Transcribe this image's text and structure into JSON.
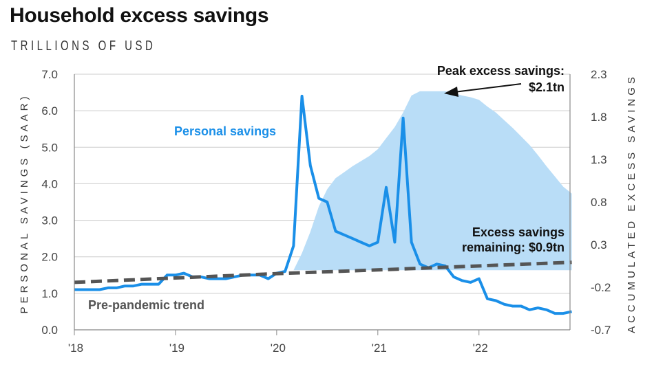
{
  "header": {
    "title": "Household excess savings",
    "subtitle": "TRILLIONS OF USD"
  },
  "colors": {
    "personal_savings_line": "#1a8fe8",
    "excess_area": "#b9ddf7",
    "trend_line": "#555555",
    "gridline": "#cccccc"
  },
  "chart_data": {
    "type": "line",
    "title": "Household excess savings",
    "subtitle": "TRILLIONS OF USD",
    "ylabel_left": "PERSONAL SAVINGS (SAAR)",
    "ylabel_right": "ACCUMULATED EXCESS SAVINGS",
    "x_ticks": [
      "'18",
      "'19",
      "'20",
      "'21",
      "'22"
    ],
    "x_range": [
      2018.0,
      2022.9
    ],
    "y_left_ticks": [
      "0.0",
      "1.0",
      "2.0",
      "3.0",
      "4.0",
      "5.0",
      "6.0",
      "7.0"
    ],
    "y_left_range": [
      0,
      7
    ],
    "y_right_ticks": [
      "-0.7",
      "-0.2",
      "0.3",
      "0.8",
      "1.3",
      "1.8",
      "2.3"
    ],
    "y_right_range": [
      -0.7,
      2.3
    ],
    "grid": true,
    "series": [
      {
        "name": "Personal savings",
        "axis": "left",
        "style": "solid",
        "x": [
          2018.0,
          2018.083,
          2018.167,
          2018.25,
          2018.333,
          2018.417,
          2018.5,
          2018.583,
          2018.667,
          2018.75,
          2018.833,
          2018.917,
          2019.0,
          2019.083,
          2019.167,
          2019.25,
          2019.333,
          2019.417,
          2019.5,
          2019.583,
          2019.667,
          2019.75,
          2019.833,
          2019.917,
          2020.0,
          2020.083,
          2020.167,
          2020.25,
          2020.333,
          2020.417,
          2020.5,
          2020.583,
          2020.667,
          2020.75,
          2020.833,
          2020.917,
          2021.0,
          2021.083,
          2021.167,
          2021.25,
          2021.333,
          2021.417,
          2021.5,
          2021.583,
          2021.667,
          2021.75,
          2021.833,
          2021.917,
          2022.0,
          2022.083,
          2022.167,
          2022.25,
          2022.333,
          2022.417,
          2022.5,
          2022.583,
          2022.667,
          2022.75,
          2022.833,
          2022.917
        ],
        "values": [
          1.1,
          1.1,
          1.1,
          1.1,
          1.15,
          1.15,
          1.2,
          1.2,
          1.25,
          1.25,
          1.25,
          1.5,
          1.5,
          1.55,
          1.45,
          1.45,
          1.4,
          1.4,
          1.4,
          1.45,
          1.5,
          1.5,
          1.5,
          1.4,
          1.55,
          1.6,
          2.3,
          6.4,
          4.5,
          3.6,
          3.5,
          2.7,
          2.6,
          2.5,
          2.4,
          2.3,
          2.4,
          3.9,
          2.4,
          5.8,
          2.4,
          1.8,
          1.7,
          1.8,
          1.75,
          1.45,
          1.35,
          1.3,
          1.4,
          0.85,
          0.8,
          0.7,
          0.65,
          0.65,
          0.55,
          0.6,
          0.55,
          0.45,
          0.45,
          0.5
        ]
      },
      {
        "name": "Pre-pandemic trend",
        "axis": "left",
        "style": "dashed",
        "x": [
          2018.0,
          2019.0,
          2020.0,
          2021.0,
          2022.0,
          2022.917
        ],
        "values": [
          1.3,
          1.42,
          1.54,
          1.64,
          1.75,
          1.85
        ]
      },
      {
        "name": "Accumulated excess savings",
        "axis": "right",
        "style": "area",
        "x": [
          2020.167,
          2020.25,
          2020.333,
          2020.417,
          2020.5,
          2020.583,
          2020.667,
          2020.75,
          2020.833,
          2020.917,
          2021.0,
          2021.083,
          2021.167,
          2021.25,
          2021.333,
          2021.417,
          2021.5,
          2021.583,
          2021.667,
          2021.75,
          2021.833,
          2021.917,
          2022.0,
          2022.083,
          2022.167,
          2022.25,
          2022.333,
          2022.417,
          2022.5,
          2022.583,
          2022.667,
          2022.75,
          2022.833,
          2022.917
        ],
        "values": [
          0.0,
          0.2,
          0.45,
          0.75,
          0.95,
          1.08,
          1.15,
          1.22,
          1.28,
          1.34,
          1.42,
          1.55,
          1.68,
          1.85,
          2.05,
          2.1,
          2.1,
          2.1,
          2.1,
          2.08,
          2.05,
          2.03,
          2.0,
          1.92,
          1.85,
          1.76,
          1.67,
          1.57,
          1.47,
          1.35,
          1.22,
          1.1,
          0.98,
          0.9
        ]
      }
    ],
    "annotations": {
      "peak_line1": "Peak excess savings:",
      "peak_line2": "$2.1tn",
      "remaining_line1": "Excess savings",
      "remaining_line2": "remaining: $0.9tn",
      "personal_savings_label": "Personal savings",
      "trend_label": "Pre-pandemic trend"
    }
  }
}
